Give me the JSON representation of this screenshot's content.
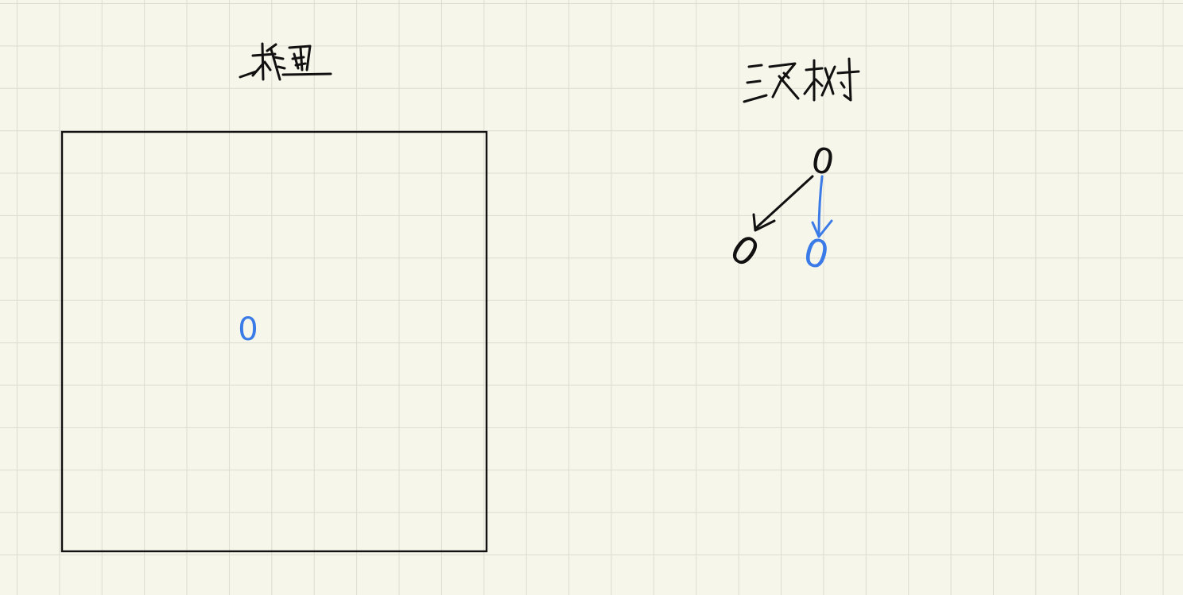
{
  "canvas": {
    "background_color": "#f6f6ea",
    "grid_color": "#dcdcd2",
    "grid": true
  },
  "ink": {
    "black": "#111111",
    "blue": "#3b7be8"
  },
  "board": {
    "title": "棋盘",
    "stone_label": "0"
  },
  "tree": {
    "title": "三叉树",
    "root_label": "0",
    "left_child_label": "0",
    "middle_child_label": "0"
  }
}
